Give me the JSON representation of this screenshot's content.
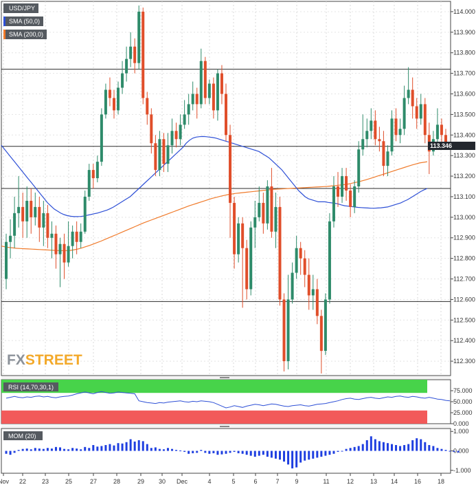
{
  "chart_data": [
    {
      "type": "candlestick",
      "title": "USD/JPY",
      "legend": [
        "USD/JPY",
        "SMA (50,0)",
        "SMA (200,0)"
      ],
      "current_price_label": "113.346",
      "ylim": [
        112.23,
        114.05
      ],
      "y_ticks": [
        "114.000",
        "113.900",
        "113.800",
        "113.700",
        "113.600",
        "113.500",
        "113.400",
        "113.300",
        "113.200",
        "113.100",
        "113.000",
        "112.900",
        "112.800",
        "112.700",
        "112.600",
        "112.500",
        "112.400",
        "112.300"
      ],
      "horizontal_levels": [
        113.72,
        113.345,
        113.14,
        112.59
      ],
      "x_tick_labels": [
        "Nov",
        "22",
        "23",
        "25",
        "27",
        "28",
        "29",
        "30",
        "Dec",
        "4",
        "5",
        "6",
        "7",
        "9",
        "11",
        "12",
        "13",
        "14",
        "16",
        "18"
      ],
      "candles": [
        [
          112.7,
          112.88,
          112.92,
          112.65
        ],
        [
          112.88,
          112.91,
          112.99,
          112.8
        ],
        [
          112.91,
          113.02,
          113.1,
          112.85
        ],
        [
          113.02,
          113.05,
          113.2,
          112.95
        ],
        [
          113.05,
          112.98,
          113.12,
          112.9
        ],
        [
          112.98,
          113.08,
          113.15,
          112.9
        ],
        [
          113.08,
          113.0,
          113.14,
          112.92
        ],
        [
          113.0,
          113.05,
          113.12,
          112.96
        ],
        [
          113.05,
          112.95,
          113.1,
          112.88
        ],
        [
          112.95,
          113.02,
          113.08,
          112.86
        ],
        [
          113.02,
          112.9,
          113.06,
          112.85
        ],
        [
          112.9,
          112.92,
          112.98,
          112.8
        ],
        [
          112.92,
          112.82,
          112.96,
          112.75
        ],
        [
          112.82,
          112.87,
          112.9,
          112.66
        ],
        [
          112.87,
          112.78,
          112.92,
          112.7
        ],
        [
          112.78,
          112.86,
          112.98,
          112.76
        ],
        [
          112.86,
          112.93,
          112.96,
          112.8
        ],
        [
          112.93,
          112.88,
          112.98,
          112.82
        ],
        [
          112.88,
          112.93,
          112.97,
          112.85
        ],
        [
          112.93,
          113.1,
          113.13,
          112.92
        ],
        [
          113.1,
          113.23,
          113.26,
          113.08
        ],
        [
          113.23,
          113.19,
          113.26,
          113.14
        ],
        [
          113.19,
          113.27,
          113.3,
          113.17
        ],
        [
          113.27,
          113.5,
          113.53,
          113.25
        ],
        [
          113.5,
          113.62,
          113.65,
          113.48
        ],
        [
          113.62,
          113.58,
          113.68,
          113.54
        ],
        [
          113.58,
          113.52,
          113.62,
          113.48
        ],
        [
          113.52,
          113.63,
          113.66,
          113.5
        ],
        [
          113.63,
          113.7,
          113.76,
          113.6
        ],
        [
          113.7,
          113.77,
          113.83,
          113.66
        ],
        [
          113.77,
          113.83,
          113.9,
          113.73
        ],
        [
          113.83,
          113.75,
          113.87,
          113.7
        ],
        [
          113.75,
          114.0,
          114.03,
          113.72
        ],
        [
          114.0,
          113.58,
          114.02,
          113.55
        ],
        [
          113.58,
          113.5,
          113.61,
          113.45
        ],
        [
          113.5,
          113.36,
          113.53,
          113.31
        ],
        [
          113.36,
          113.23,
          113.4,
          113.2
        ],
        [
          113.23,
          113.38,
          113.42,
          113.2
        ],
        [
          113.38,
          113.26,
          113.41,
          113.22
        ],
        [
          113.26,
          113.35,
          113.41,
          113.22
        ],
        [
          113.35,
          113.42,
          113.48,
          113.31
        ],
        [
          113.42,
          113.38,
          113.46,
          113.34
        ],
        [
          113.38,
          113.45,
          113.5,
          113.35
        ],
        [
          113.45,
          113.5,
          113.57,
          113.43
        ],
        [
          113.5,
          113.55,
          113.6,
          113.45
        ],
        [
          113.55,
          113.6,
          113.66,
          113.52
        ],
        [
          113.6,
          113.55,
          113.63,
          113.48
        ],
        [
          113.55,
          113.76,
          113.82,
          113.53
        ],
        [
          113.76,
          113.58,
          113.78,
          113.55
        ],
        [
          113.58,
          113.65,
          113.67,
          113.55
        ],
        [
          113.65,
          113.52,
          113.68,
          113.48
        ],
        [
          113.52,
          113.7,
          113.72,
          113.47
        ],
        [
          113.7,
          113.6,
          113.74,
          113.55
        ],
        [
          113.6,
          113.4,
          113.65,
          113.37
        ],
        [
          113.4,
          113.07,
          113.45,
          112.9
        ],
        [
          113.07,
          112.82,
          113.1,
          112.75
        ],
        [
          112.82,
          112.97,
          113.0,
          112.78
        ],
        [
          112.97,
          112.85,
          113.0,
          112.56
        ],
        [
          112.85,
          112.65,
          112.89,
          112.6
        ],
        [
          112.65,
          112.95,
          112.98,
          112.62
        ],
        [
          112.95,
          113.0,
          113.08,
          112.85
        ],
        [
          113.0,
          113.07,
          113.15,
          112.98
        ],
        [
          113.07,
          112.97,
          113.12,
          112.92
        ],
        [
          112.97,
          113.15,
          113.18,
          112.94
        ],
        [
          113.15,
          112.93,
          113.24,
          112.9
        ],
        [
          112.93,
          113.05,
          113.12,
          112.85
        ],
        [
          113.05,
          112.6,
          113.1,
          112.57
        ],
        [
          112.6,
          112.3,
          112.63,
          112.25
        ],
        [
          112.3,
          112.6,
          112.72,
          112.26
        ],
        [
          112.6,
          112.73,
          112.78,
          112.58
        ],
        [
          112.73,
          112.85,
          112.91,
          112.7
        ],
        [
          112.85,
          112.8,
          112.88,
          112.72
        ],
        [
          112.8,
          112.72,
          112.84,
          112.66
        ],
        [
          112.72,
          112.62,
          112.8,
          112.55
        ],
        [
          112.62,
          112.65,
          112.72,
          112.55
        ],
        [
          112.65,
          112.52,
          112.7,
          112.48
        ],
        [
          112.52,
          112.35,
          112.55,
          112.24
        ],
        [
          112.35,
          112.6,
          112.63,
          112.33
        ],
        [
          112.6,
          112.98,
          113.02,
          112.58
        ],
        [
          112.98,
          113.15,
          113.2,
          112.95
        ],
        [
          113.15,
          113.1,
          113.22,
          113.05
        ],
        [
          113.1,
          113.2,
          113.24,
          113.07
        ],
        [
          113.2,
          113.13,
          113.24,
          113.08
        ],
        [
          113.13,
          113.05,
          113.16,
          113.0
        ],
        [
          113.05,
          113.15,
          113.18,
          113.02
        ],
        [
          113.15,
          113.33,
          113.37,
          113.12
        ],
        [
          113.33,
          113.38,
          113.5,
          113.3
        ],
        [
          113.38,
          113.42,
          113.48,
          113.34
        ],
        [
          113.42,
          113.47,
          113.53,
          113.38
        ],
        [
          113.47,
          113.38,
          113.52,
          113.35
        ],
        [
          113.38,
          113.37,
          113.44,
          113.32
        ],
        [
          113.37,
          113.25,
          113.42,
          113.2
        ],
        [
          113.25,
          113.32,
          113.35,
          113.2
        ],
        [
          113.32,
          113.48,
          113.52,
          113.3
        ],
        [
          113.48,
          113.4,
          113.53,
          113.37
        ],
        [
          113.4,
          113.43,
          113.48,
          113.36
        ],
        [
          113.43,
          113.58,
          113.64,
          113.4
        ],
        [
          113.58,
          113.62,
          113.73,
          113.55
        ],
        [
          113.62,
          113.54,
          113.68,
          113.48
        ],
        [
          113.54,
          113.48,
          113.58,
          113.43
        ],
        [
          113.48,
          113.55,
          113.6,
          113.45
        ],
        [
          113.55,
          113.4,
          113.58,
          113.36
        ],
        [
          113.4,
          113.32,
          113.46,
          113.21
        ],
        [
          113.32,
          113.38,
          113.42,
          113.3
        ],
        [
          113.38,
          113.45,
          113.53,
          113.34
        ],
        [
          113.45,
          113.4,
          113.48,
          113.36
        ],
        [
          113.4,
          113.35,
          113.43,
          113.33
        ]
      ],
      "sma50": [
        113.35,
        113.33,
        113.31,
        113.29,
        113.27,
        113.25,
        113.23,
        113.21,
        113.19,
        113.17,
        113.15,
        113.13,
        113.11,
        113.09,
        113.07,
        113.055,
        113.04,
        113.03,
        113.02,
        113.013,
        113.008,
        113.005,
        113.003,
        113.003,
        113.004,
        113.006,
        113.01,
        113.013,
        113.017,
        113.02,
        113.025,
        113.03,
        113.035,
        113.042,
        113.05,
        113.06,
        113.07,
        113.08,
        113.09,
        113.1,
        113.115,
        113.13,
        113.145,
        113.16,
        113.175,
        113.19,
        113.205,
        113.22,
        113.235,
        113.25,
        113.265,
        113.28,
        113.295,
        113.31,
        113.325,
        113.34,
        113.36,
        113.375,
        113.385,
        113.39,
        113.392,
        113.393,
        113.392,
        113.39,
        113.388,
        113.385,
        113.38,
        113.375,
        113.37,
        113.365,
        113.36,
        113.355,
        113.35,
        113.345,
        113.34,
        113.335,
        113.33,
        113.325,
        113.32,
        113.31,
        113.3,
        113.29,
        113.275,
        113.26,
        113.245,
        113.23,
        113.21,
        113.19,
        113.17,
        113.15,
        113.13,
        113.115,
        113.1,
        113.09,
        113.085,
        113.08,
        113.075,
        113.075,
        113.075,
        113.072,
        113.07,
        113.068,
        113.065,
        113.06,
        113.056,
        113.054,
        113.052,
        113.05,
        113.048,
        113.047,
        113.046,
        113.045,
        113.044,
        113.044,
        113.045,
        113.046,
        113.048,
        113.05,
        113.055,
        113.06,
        113.065,
        113.07,
        113.078,
        113.085,
        113.095,
        113.105,
        113.115,
        113.125,
        113.133,
        113.14
      ],
      "sma200": [
        112.86,
        112.856,
        112.853,
        112.851,
        112.849,
        112.848,
        112.847,
        112.846,
        112.845,
        112.844,
        112.843,
        112.842,
        112.841,
        112.84,
        112.839,
        112.838,
        112.838,
        112.838,
        112.839,
        112.842,
        112.846,
        112.851,
        112.857,
        112.863,
        112.87,
        112.877,
        112.884,
        112.892,
        112.9,
        112.908,
        112.916,
        112.924,
        112.932,
        112.94,
        112.948,
        112.956,
        112.964,
        112.972,
        112.979,
        112.986,
        112.993,
        113.0,
        113.007,
        113.014,
        113.021,
        113.028,
        113.035,
        113.042,
        113.049,
        113.056,
        113.062,
        113.068,
        113.074,
        113.08,
        113.086,
        113.092,
        113.097,
        113.102,
        113.106,
        113.11,
        113.113,
        113.116,
        113.118,
        113.12,
        113.122,
        113.124,
        113.126,
        113.128,
        113.13,
        113.132,
        113.134,
        113.136,
        113.137,
        113.138,
        113.139,
        113.14,
        113.141,
        113.142,
        113.143,
        113.144,
        113.145,
        113.146,
        113.147,
        113.148,
        113.149,
        113.15,
        113.152,
        113.154,
        113.156,
        113.158,
        113.16,
        113.164,
        113.168,
        113.172,
        113.177,
        113.182,
        113.188,
        113.194,
        113.2,
        113.206,
        113.212,
        113.218,
        113.224,
        113.23,
        113.236,
        113.242,
        113.248,
        113.254,
        113.259,
        113.264,
        113.267,
        113.27
      ]
    },
    {
      "type": "line",
      "title": "RSI (14,70,30,1)",
      "y_ticks": [
        "75.000",
        "50.000",
        "25.000",
        "0.000"
      ],
      "ylim": [
        0,
        100
      ],
      "overbought": 70,
      "oversold": 30,
      "values": [
        58,
        60,
        62,
        60,
        59,
        61,
        60,
        62,
        63,
        61,
        62,
        60,
        59,
        61,
        62,
        63,
        65,
        68,
        70,
        72,
        70,
        68,
        71,
        73,
        71,
        69,
        70,
        72,
        71,
        70,
        69,
        68,
        52,
        50,
        48,
        47,
        46,
        48,
        47,
        49,
        50,
        51,
        52,
        50,
        49,
        51,
        50,
        52,
        51,
        50,
        48,
        44,
        40,
        36,
        38,
        41,
        39,
        37,
        40,
        42,
        44,
        43,
        41,
        43,
        45,
        44,
        42,
        40,
        39,
        41,
        42,
        43,
        41,
        40,
        42,
        44,
        45,
        46,
        48,
        50,
        52,
        55,
        57,
        58,
        56,
        55,
        57,
        59,
        60,
        58,
        57,
        59,
        61,
        60,
        62,
        63,
        61,
        60,
        62,
        61,
        59,
        58,
        60,
        58,
        56,
        55,
        53,
        52
      ]
    },
    {
      "type": "bar",
      "title": "MOM (20)",
      "y_ticks": [
        "1.000",
        "0.000",
        "-1.000"
      ],
      "ylim": [
        -1.15,
        1.15
      ],
      "values": [
        -0.15,
        -0.2,
        -0.1,
        0.05,
        0.1,
        0.12,
        0.08,
        0.15,
        0.12,
        0.1,
        0.15,
        0.12,
        0.2,
        0.18,
        0.1,
        0.08,
        0.15,
        0.12,
        0.08,
        0.2,
        0.15,
        0.3,
        0.22,
        0.25,
        0.3,
        0.35,
        0.28,
        0.4,
        0.38,
        0.45,
        0.6,
        0.48,
        0.55,
        0.5,
        0.35,
        0.15,
        0.18,
        0.1,
        0.08,
        0.15,
        0.1,
        0.05,
        0.02,
        -0.05,
        -0.15,
        -0.12,
        -0.1,
        0.05,
        -0.1,
        -0.15,
        -0.12,
        -0.2,
        -0.18,
        -0.15,
        -0.1,
        -0.05,
        -0.12,
        -0.15,
        -0.2,
        -0.25,
        -0.3,
        -0.25,
        -0.2,
        -0.3,
        -0.35,
        -0.4,
        -0.45,
        -0.55,
        -0.7,
        -0.9,
        -0.85,
        -0.6,
        -0.5,
        -0.45,
        -0.4,
        -0.35,
        -0.3,
        -0.25,
        -0.2,
        -0.15,
        -0.05,
        0.0,
        0.1,
        0.15,
        0.2,
        0.25,
        0.35,
        0.55,
        0.75,
        0.6,
        0.5,
        0.45,
        0.4,
        0.35,
        0.3,
        0.25,
        0.3,
        0.35,
        0.55,
        0.65,
        0.6,
        0.45,
        0.3,
        0.25,
        0.15,
        0.1,
        0.05,
        -0.02,
        -0.05,
        -0.08
      ]
    }
  ]
}
